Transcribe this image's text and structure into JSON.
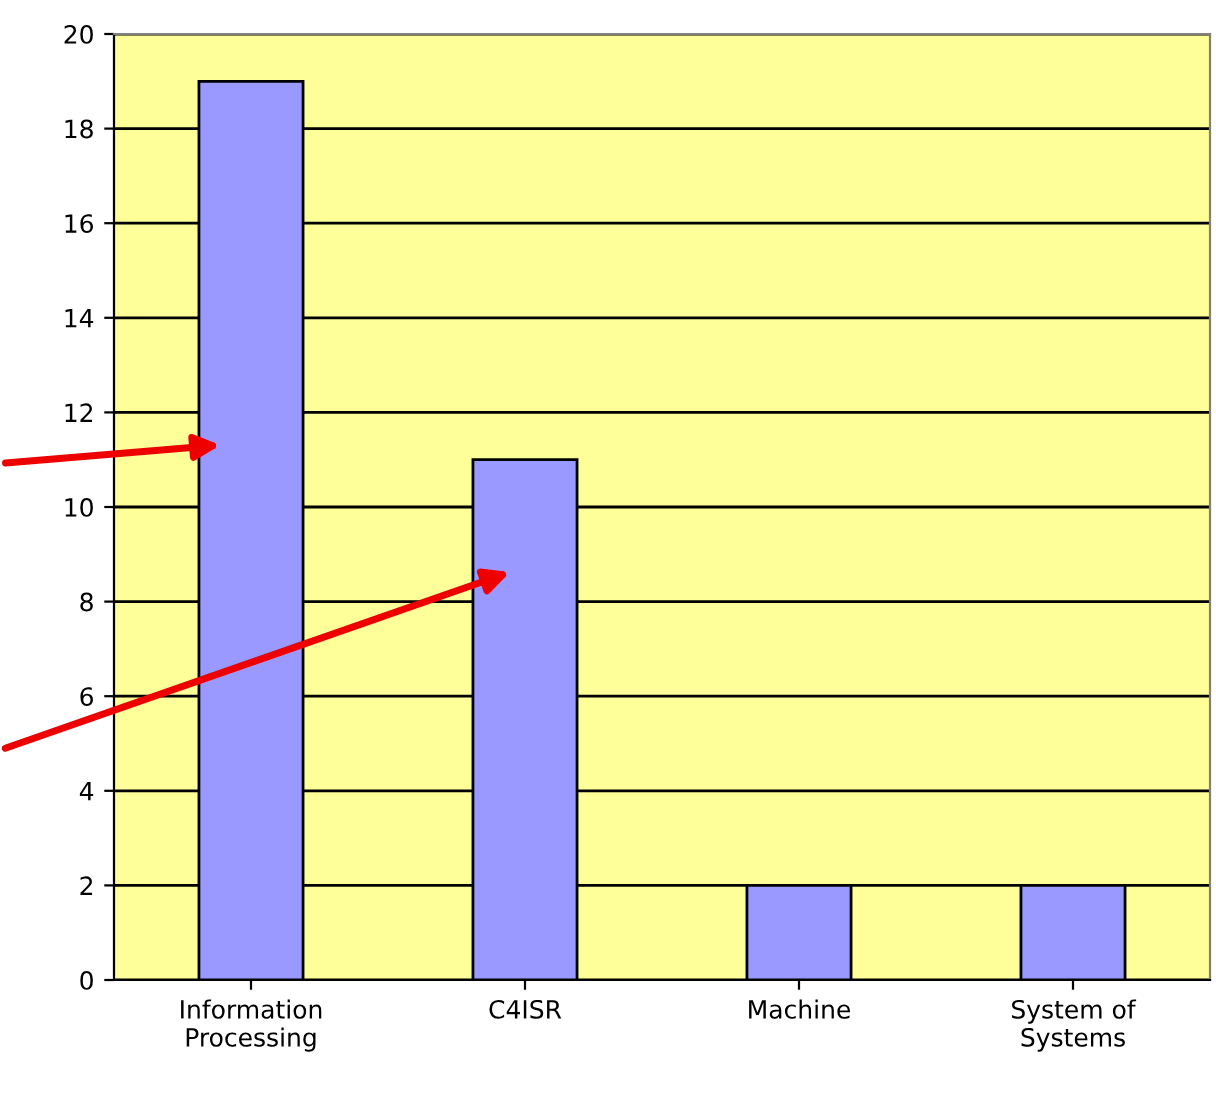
{
  "chart_data": {
    "type": "bar",
    "categories": [
      "Information\nProcessing",
      "C4ISR",
      "Machine",
      "System of\nSystems"
    ],
    "values": [
      19,
      11,
      2,
      2
    ],
    "color": "#9999ff",
    "ylim": [
      0,
      20
    ],
    "yticks": [
      0,
      2,
      4,
      6,
      8,
      10,
      12,
      14,
      16,
      18,
      20
    ],
    "grid": "y"
  }
}
